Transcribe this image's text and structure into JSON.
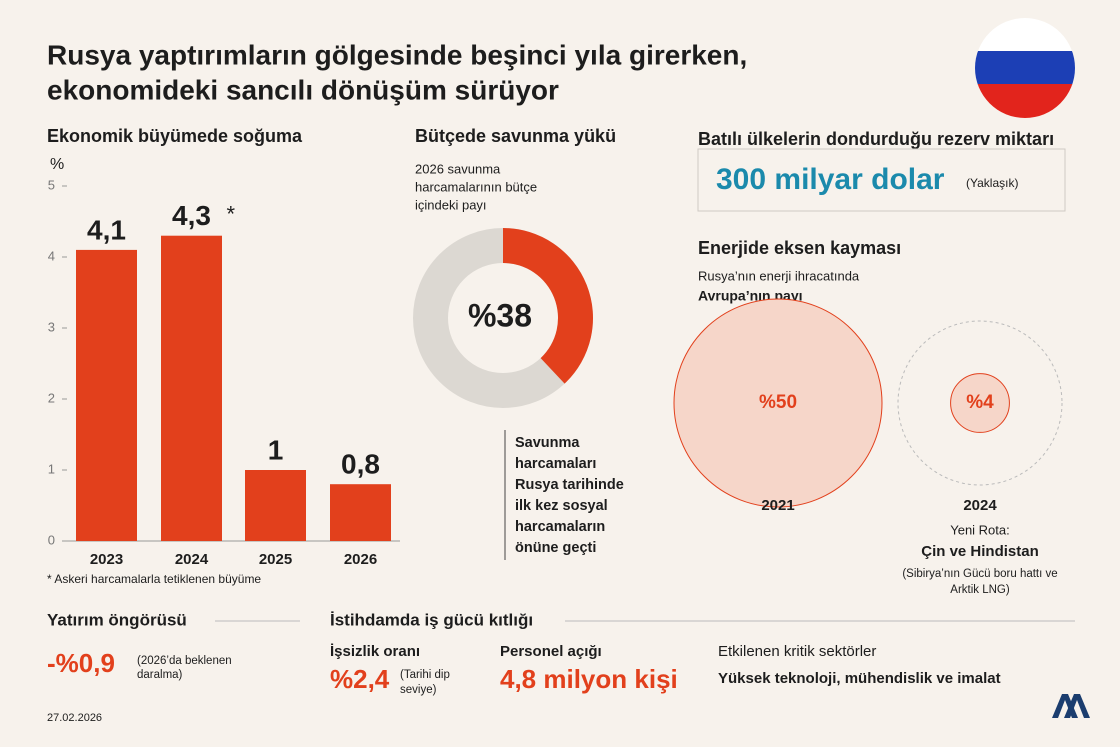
{
  "header": {
    "title_lines": [
      "Rusya yaptırımların gölgesinde beşinci yıla girerken,",
      "ekonomideki sancılı dönüşüm sürüyor"
    ]
  },
  "chart_data": [
    {
      "type": "bar",
      "title": "Ekonomik büyümede soğuma",
      "y_label": "%",
      "categories": [
        "2023",
        "2024",
        "2025",
        "2026"
      ],
      "values": [
        4.1,
        4.3,
        1,
        0.8
      ],
      "value_labels": [
        "4,1",
        "4,3",
        "1",
        "0,8"
      ],
      "value_annotations": [
        null,
        "*",
        null,
        null
      ],
      "color": "#e2401c",
      "ylim": [
        0,
        5
      ],
      "yticks": [
        0,
        1,
        2,
        3,
        4,
        5
      ],
      "note": "* Askeri harcamalarla tetiklenen büyüme"
    },
    {
      "type": "donut",
      "title": "Bütçede savunma yükü",
      "subtitle_lines": [
        "2026 savunma",
        "harcamalarının bütçe",
        "içindeki payı"
      ],
      "values": [
        38
      ],
      "value_labels": [
        "%38"
      ],
      "color": "#e2401c",
      "annotation_lines": [
        "Savunma",
        "harcamaları",
        "Rusya tarihinde",
        "ilk kez sosyal",
        "harcamaların",
        "önüne geçti"
      ]
    },
    {
      "type": "bubble",
      "title": "Enerjide eksen kayması",
      "subtitle_lines": [
        "Rusya’nın enerji ihracatında",
        "Avrupa’nın payı"
      ],
      "categories": [
        "2021",
        "2024"
      ],
      "values": [
        50,
        4
      ],
      "value_labels": [
        "%50",
        "%4"
      ],
      "color": "#e2401c",
      "note_lines": [
        "Yeni Rota:",
        "Çin ve Hindistan",
        "(Sibirya’nın Gücü boru hattı ve",
        "Arktik LNG)"
      ]
    }
  ],
  "reserves": {
    "title": "Batılı ülkelerin dondurduğu rezerv miktarı",
    "value": "300 milyar dolar",
    "note": "(Yaklaşık)"
  },
  "investment": {
    "title": "Yatırım öngörüsü",
    "value": "-%0,9",
    "note_lines": [
      "(2026’da beklenen",
      "daralma)"
    ]
  },
  "employment": {
    "title": "İstihdamda iş gücü kıtlığı",
    "items": [
      {
        "label": "İşsizlik oranı",
        "value": "%2,4",
        "note_lines": [
          "(Tarihi dip",
          "seviye)"
        ]
      },
      {
        "label": "Personel açığı",
        "value": "4,8 milyon kişi"
      },
      {
        "label": "Etkilenen kritik sektörler",
        "value": "Yüksek teknoloji, mühendislik ve imalat"
      }
    ]
  },
  "footer": {
    "date": "27.02.2026"
  }
}
